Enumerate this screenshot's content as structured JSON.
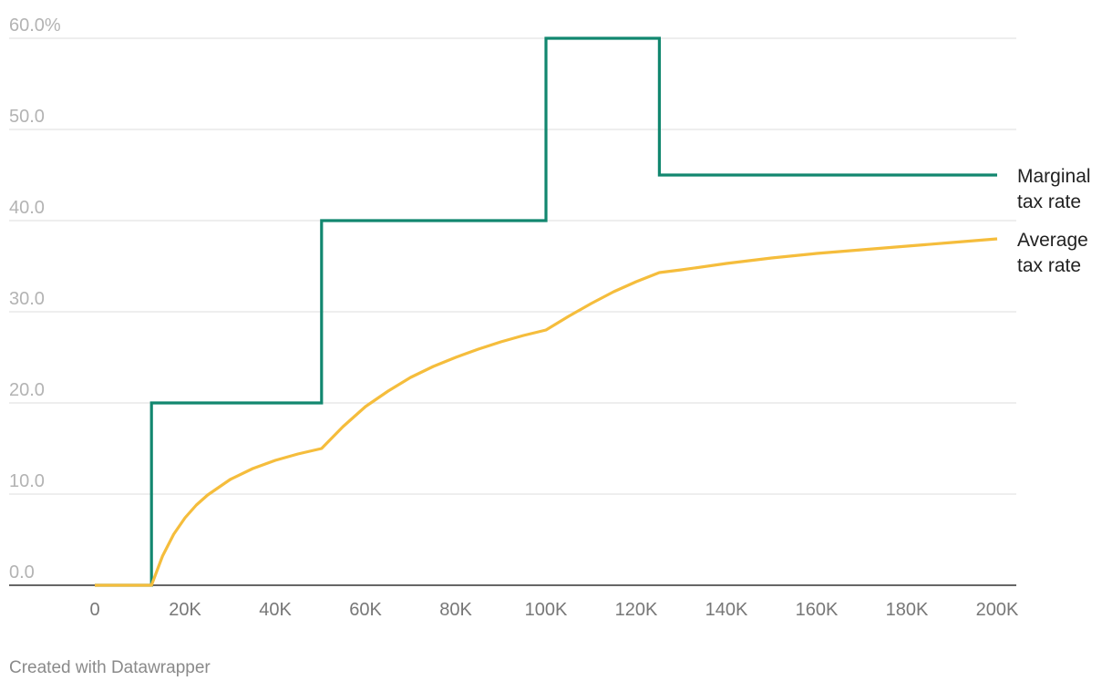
{
  "chart_data": {
    "type": "line",
    "title": "",
    "xlabel": "",
    "ylabel": "",
    "xlim": [
      0,
      200000
    ],
    "ylim": [
      0,
      60
    ],
    "grid": true,
    "x_ticks": [
      0,
      20000,
      40000,
      60000,
      80000,
      100000,
      120000,
      140000,
      160000,
      180000,
      200000
    ],
    "x_tick_labels": [
      "0",
      "20K",
      "40K",
      "60K",
      "80K",
      "100K",
      "120K",
      "140K",
      "160K",
      "180K",
      "200K"
    ],
    "y_ticks": [
      0,
      10,
      20,
      30,
      40,
      50,
      60
    ],
    "y_tick_labels": [
      "0.0",
      "10.0",
      "20.0",
      "30.0",
      "40.0",
      "50.0",
      "60.0%"
    ],
    "series": [
      {
        "name": "Marginal tax rate",
        "label_lines": [
          "Marginal",
          "tax rate"
        ],
        "color": "#12876f",
        "step": true,
        "points": [
          [
            0,
            0
          ],
          [
            12570,
            0
          ],
          [
            12570,
            20
          ],
          [
            50270,
            20
          ],
          [
            50270,
            40
          ],
          [
            100000,
            40
          ],
          [
            100000,
            60
          ],
          [
            125140,
            60
          ],
          [
            125140,
            45
          ],
          [
            200000,
            45
          ]
        ]
      },
      {
        "name": "Average tax rate",
        "label_lines": [
          "Average",
          "tax rate"
        ],
        "color": "#f5bd3c",
        "step": false,
        "points": [
          [
            0,
            0
          ],
          [
            12570,
            0
          ],
          [
            15000,
            3.2
          ],
          [
            17500,
            5.6
          ],
          [
            20000,
            7.4
          ],
          [
            22500,
            8.8
          ],
          [
            25000,
            9.9
          ],
          [
            30000,
            11.6
          ],
          [
            35000,
            12.8
          ],
          [
            40000,
            13.7
          ],
          [
            45000,
            14.4
          ],
          [
            50270,
            15.0
          ],
          [
            55000,
            17.4
          ],
          [
            60000,
            19.6
          ],
          [
            65000,
            21.3
          ],
          [
            70000,
            22.8
          ],
          [
            75000,
            24.0
          ],
          [
            80000,
            25.0
          ],
          [
            85000,
            25.9
          ],
          [
            90000,
            26.7
          ],
          [
            95000,
            27.4
          ],
          [
            100000,
            28.0
          ],
          [
            105000,
            29.5
          ],
          [
            110000,
            30.9
          ],
          [
            115000,
            32.2
          ],
          [
            120000,
            33.3
          ],
          [
            125140,
            34.3
          ],
          [
            130000,
            34.6
          ],
          [
            140000,
            35.3
          ],
          [
            150000,
            35.9
          ],
          [
            160000,
            36.4
          ],
          [
            170000,
            36.8
          ],
          [
            180000,
            37.2
          ],
          [
            190000,
            37.6
          ],
          [
            200000,
            38.0
          ]
        ]
      }
    ]
  },
  "footer": {
    "credit": "Created with Datawrapper"
  }
}
